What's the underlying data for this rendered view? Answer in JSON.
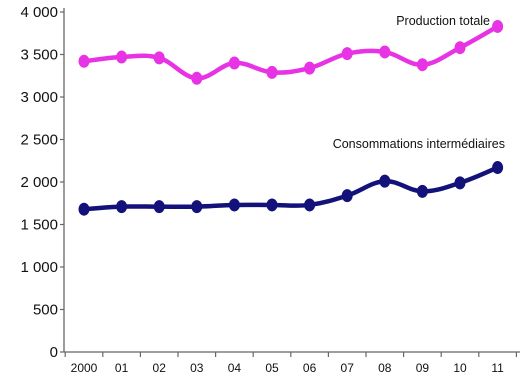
{
  "chart_data": {
    "type": "line",
    "categories": [
      "2000",
      "01",
      "02",
      "03",
      "04",
      "05",
      "06",
      "07",
      "08",
      "09",
      "10",
      "11"
    ],
    "y_ticks": [
      "0",
      "500",
      "1 000",
      "1 500",
      "2 000",
      "2 500",
      "3 000",
      "3 500",
      "4 000"
    ],
    "y_tick_values": [
      0,
      500,
      1000,
      1500,
      2000,
      2500,
      3000,
      3500,
      4000
    ],
    "ylim": [
      0,
      4000
    ],
    "grid": false,
    "series": [
      {
        "name": "Production totale",
        "color": "#e733e3",
        "values": [
          3420,
          3470,
          3460,
          3220,
          3400,
          3290,
          3340,
          3510,
          3530,
          3380,
          3580,
          3830
        ]
      },
      {
        "name": "Consommations intermédiaires",
        "color": "#12127a",
        "values": [
          1680,
          1710,
          1710,
          1710,
          1730,
          1730,
          1730,
          1840,
          2010,
          1890,
          1990,
          2170
        ]
      }
    ]
  }
}
